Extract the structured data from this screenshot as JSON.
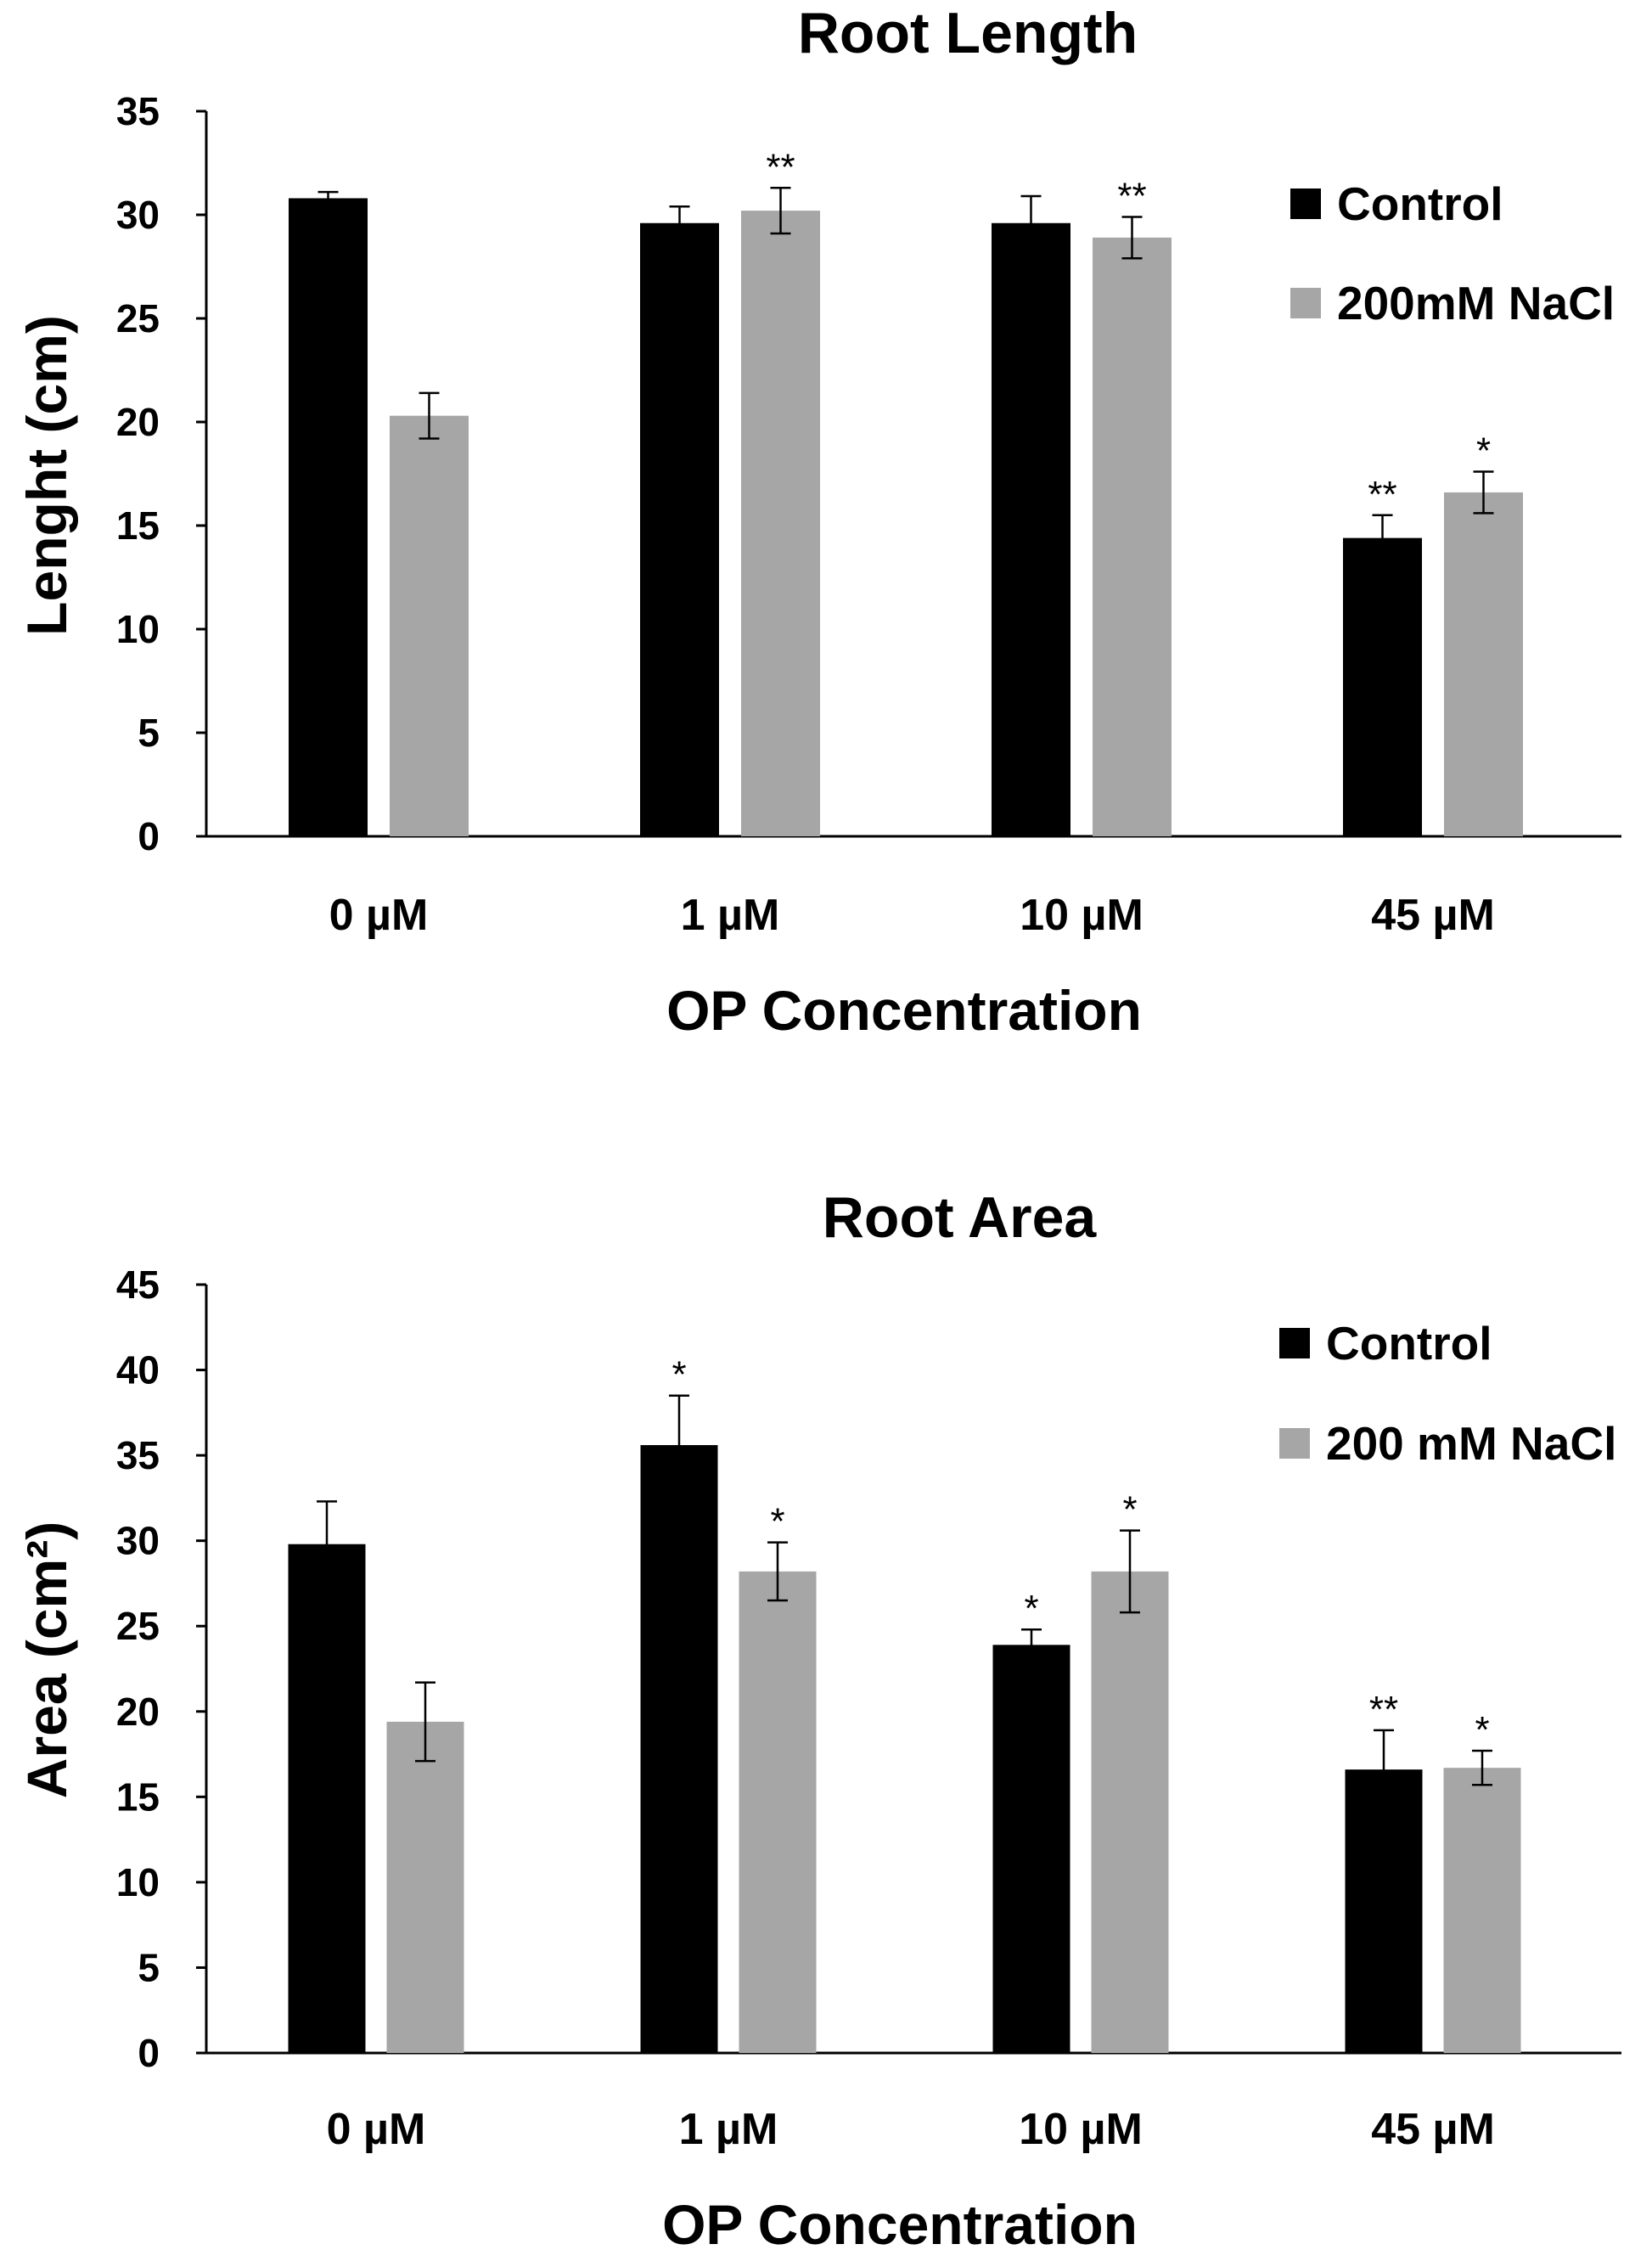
{
  "colors": {
    "control": "#000000",
    "nacl": "#a6a6a6",
    "axis": "#000000"
  },
  "chart_data": [
    {
      "type": "bar",
      "title": "Root Length",
      "xlabel": "OP Concentration",
      "ylabel": "Lenght (cm)",
      "ylim": [
        0,
        35
      ],
      "yticks": [
        "0",
        "5",
        "10",
        "15",
        "20",
        "25",
        "30",
        "35"
      ],
      "categories": [
        "0 µM",
        "1 µM",
        "10 µM",
        "45 µM"
      ],
      "legend_position": "top-right",
      "series": [
        {
          "name": "Control",
          "color": "#000000",
          "values": [
            30.8,
            29.6,
            29.6,
            14.4
          ],
          "errors": [
            0.3,
            0.8,
            1.3,
            1.1
          ],
          "significance": [
            "",
            "",
            "",
            "**"
          ]
        },
        {
          "name": "200mM NaCl",
          "color": "#a6a6a6",
          "values": [
            20.3,
            30.2,
            28.9,
            16.6
          ],
          "errors": [
            1.1,
            1.1,
            1.0,
            1.0
          ],
          "significance": [
            "",
            "**",
            "**",
            "*"
          ]
        }
      ]
    },
    {
      "type": "bar",
      "title": "Root Area",
      "xlabel": "OP Concentration",
      "ylabel": "Area (cm²)",
      "ylim": [
        0,
        45
      ],
      "yticks": [
        "0",
        "5",
        "10",
        "15",
        "20",
        "25",
        "30",
        "35",
        "40",
        "45"
      ],
      "categories": [
        "0 µM",
        "1 µM",
        "10 µM",
        "45 µM"
      ],
      "legend_position": "top-right",
      "series": [
        {
          "name": "Control",
          "color": "#000000",
          "values": [
            29.8,
            35.6,
            23.9,
            16.6
          ],
          "errors": [
            2.5,
            2.9,
            0.9,
            2.3
          ],
          "significance": [
            "",
            "*",
            "*",
            "**"
          ]
        },
        {
          "name": "200 mM NaCl",
          "color": "#a6a6a6",
          "values": [
            19.4,
            28.2,
            28.2,
            16.7
          ],
          "errors": [
            2.3,
            1.7,
            2.4,
            1.0
          ],
          "significance": [
            "",
            "*",
            "*",
            "*"
          ]
        }
      ]
    }
  ]
}
